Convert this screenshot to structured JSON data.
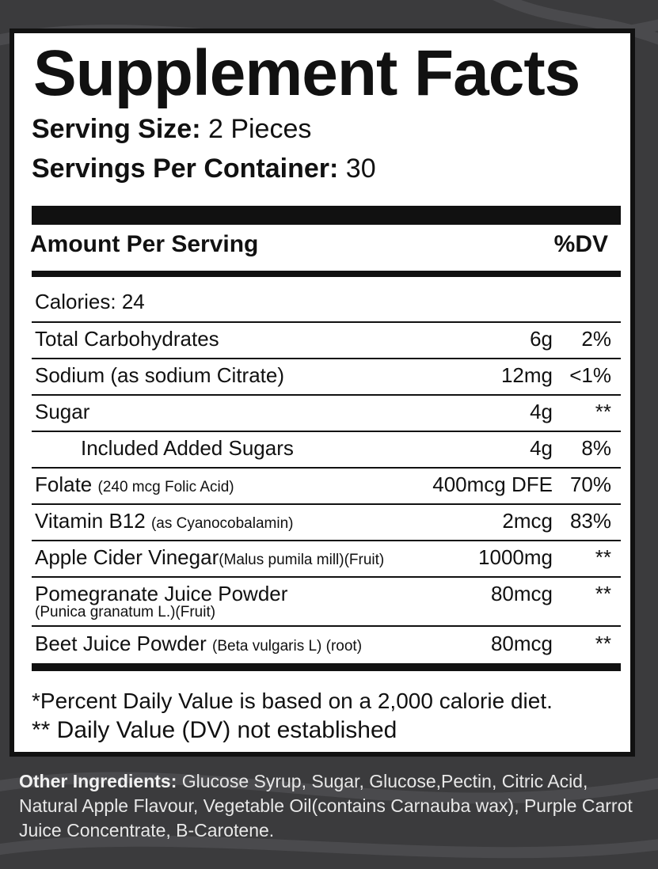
{
  "label": {
    "title": "Supplement Facts",
    "serving_size_label": "Serving Size:",
    "serving_size_value": "2 Pieces",
    "servings_per_container_label": "Servings Per Container:",
    "servings_per_container_value": "30",
    "amount_per_serving": "Amount Per Serving",
    "dv_header": "%DV",
    "calories": "Calories: 24"
  },
  "rows": [
    {
      "name": "Total Carbohydrates",
      "detail": "",
      "amount": "6g",
      "dv": "2%"
    },
    {
      "name": "Sodium (as sodium Citrate)",
      "detail": "",
      "amount": "12mg",
      "dv": "<1%"
    },
    {
      "name": "Sugar",
      "detail": "",
      "amount": "4g",
      "dv": "**"
    },
    {
      "name": "Included Added Sugars",
      "detail": "",
      "amount": "4g",
      "dv": "8%"
    },
    {
      "name": "Folate",
      "detail": "(240 mcg Folic Acid)",
      "amount": "400mcg DFE",
      "dv": "70%"
    },
    {
      "name": "Vitamin B12",
      "detail": "(as Cyanocobalamin)",
      "amount": "2mcg",
      "dv": "83%"
    },
    {
      "name": "Apple Cider Vinegar",
      "detail": "(Malus pumila mill)(Fruit)",
      "amount": "1000mg",
      "dv": "**"
    },
    {
      "name": "Pomegranate Juice Powder",
      "detail": "(Punica granatum L.)(Fruit)",
      "amount": "80mcg",
      "dv": "**"
    },
    {
      "name": "Beet Juice Powder",
      "detail": "(Beta vulgaris L) (root)",
      "amount": "80mcg",
      "dv": "**"
    }
  ],
  "footnotes": {
    "percent_dv": "*Percent Daily Value is based on a 2,000 calorie diet.",
    "not_established": "** Daily Value (DV) not established"
  },
  "other_ingredients": {
    "label": "Other Ingredients:",
    "text": "Glucose Syrup, Sugar, Glucose,Pectin, Citric Acid,  Natural Apple Flavour, Vegetable Oil(contains Carnauba wax), Purple Carrot Juice Concentrate, B-Carotene."
  },
  "colors": {
    "background": "#3b3b3d",
    "panel": "#ffffff",
    "ink": "#111111",
    "ingredients_text": "#e8e8e8"
  }
}
